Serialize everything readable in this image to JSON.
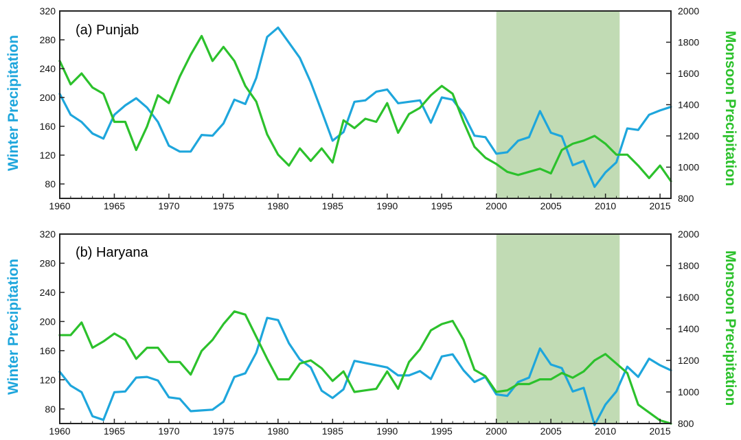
{
  "colors": {
    "winter": "#1ea6dc",
    "monsoon": "#2cc12c",
    "shade": "#c1dbb4",
    "frame": "#222222"
  },
  "chart_data": [
    {
      "type": "line",
      "title": "(a)   Punjab",
      "ylabel": "Winter Precipitation",
      "y2label": "Monsoon Precipitation",
      "xlim": [
        1960,
        2016
      ],
      "ylim": [
        60,
        320
      ],
      "y2lim": [
        800,
        2000
      ],
      "x_ticks": [
        "1960",
        "1965",
        "1970",
        "1975",
        "1980",
        "1985",
        "1990",
        "1995",
        "2000",
        "2005",
        "2010",
        "2015"
      ],
      "y_ticks": [
        "80",
        "120",
        "160",
        "200",
        "240",
        "280",
        "320"
      ],
      "y2_ticks": [
        "800",
        "1000",
        "1200",
        "1400",
        "1600",
        "1800",
        "2000"
      ],
      "shaded_range": [
        2000,
        2011.3
      ],
      "grid": false,
      "x": [
        1960,
        1961,
        1962,
        1963,
        1964,
        1965,
        1966,
        1967,
        1968,
        1969,
        1970,
        1971,
        1972,
        1973,
        1974,
        1975,
        1976,
        1977,
        1978,
        1979,
        1980,
        1981,
        1982,
        1983,
        1984,
        1985,
        1986,
        1987,
        1988,
        1989,
        1990,
        1991,
        1992,
        1993,
        1994,
        1995,
        1996,
        1997,
        1998,
        1999,
        2000,
        2001,
        2002,
        2003,
        2004,
        2005,
        2006,
        2007,
        2008,
        2009,
        2010,
        2011,
        2012,
        2013,
        2014,
        2015,
        2016
      ],
      "series": [
        {
          "axis": "left",
          "values": [
            205,
            176,
            166,
            150,
            143,
            176,
            189,
            199,
            186,
            166,
            133,
            125,
            125,
            148,
            147,
            164,
            197,
            191,
            227,
            284,
            297,
            276,
            255,
            221,
            181,
            140,
            152,
            194,
            196,
            208,
            211,
            192,
            194,
            196,
            165,
            200,
            197,
            177,
            147,
            145,
            122,
            124,
            140,
            145,
            181,
            151,
            146,
            106,
            112,
            76,
            96,
            110,
            157,
            155,
            176,
            182,
            187
          ]
        },
        {
          "axis": "right",
          "values": [
            1680,
            1530,
            1600,
            1510,
            1470,
            1290,
            1290,
            1110,
            1260,
            1460,
            1410,
            1580,
            1720,
            1840,
            1680,
            1770,
            1680,
            1520,
            1420,
            1210,
            1080,
            1010,
            1120,
            1040,
            1120,
            1030,
            1300,
            1250,
            1310,
            1290,
            1410,
            1220,
            1340,
            1380,
            1460,
            1520,
            1470,
            1290,
            1130,
            1060,
            1020,
            970,
            950,
            970,
            990,
            960,
            1110,
            1150,
            1170,
            1200,
            1150,
            1080,
            1080,
            1010,
            930,
            1010,
            910
          ]
        }
      ]
    },
    {
      "type": "line",
      "title": "(b)   Haryana",
      "ylabel": "Winter Precipitation",
      "y2label": "Monsoon Precipitation",
      "xlim": [
        1960,
        2016
      ],
      "ylim": [
        60,
        320
      ],
      "y2lim": [
        800,
        2000
      ],
      "x_ticks": [
        "1960",
        "1965",
        "1970",
        "1975",
        "1980",
        "1985",
        "1990",
        "1995",
        "2000",
        "2005",
        "2010",
        "2015"
      ],
      "y_ticks": [
        "80",
        "120",
        "160",
        "200",
        "240",
        "280",
        "320"
      ],
      "y2_ticks": [
        "800",
        "1000",
        "1200",
        "1400",
        "1600",
        "1800",
        "2000"
      ],
      "shaded_range": [
        2000,
        2011.3
      ],
      "grid": false,
      "x": [
        1960,
        1961,
        1962,
        1963,
        1964,
        1965,
        1966,
        1967,
        1968,
        1969,
        1970,
        1971,
        1972,
        1973,
        1974,
        1975,
        1976,
        1977,
        1978,
        1979,
        1980,
        1981,
        1982,
        1983,
        1984,
        1985,
        1986,
        1987,
        1988,
        1989,
        1990,
        1991,
        1992,
        1993,
        1994,
        1995,
        1996,
        1997,
        1998,
        1999,
        2000,
        2001,
        2002,
        2003,
        2004,
        2005,
        2006,
        2007,
        2008,
        2009,
        2010,
        2011,
        2012,
        2013,
        2014,
        2015,
        2016
      ],
      "series": [
        {
          "axis": "left",
          "values": [
            131,
            112,
            103,
            70,
            65,
            103,
            104,
            123,
            124,
            119,
            96,
            94,
            77,
            78,
            79,
            90,
            124,
            129,
            157,
            205,
            202,
            170,
            148,
            137,
            105,
            95,
            107,
            146,
            143,
            140,
            137,
            126,
            126,
            132,
            121,
            152,
            155,
            133,
            117,
            124,
            100,
            98,
            117,
            123,
            163,
            141,
            136,
            104,
            109,
            58,
            86,
            104,
            138,
            124,
            149,
            140,
            133
          ]
        },
        {
          "axis": "right",
          "values": [
            1360,
            1360,
            1440,
            1280,
            1320,
            1370,
            1330,
            1210,
            1280,
            1280,
            1190,
            1190,
            1110,
            1260,
            1330,
            1430,
            1510,
            1490,
            1350,
            1210,
            1080,
            1080,
            1180,
            1200,
            1150,
            1070,
            1130,
            1000,
            1010,
            1020,
            1130,
            1020,
            1190,
            1270,
            1390,
            1430,
            1450,
            1330,
            1140,
            1100,
            1000,
            1010,
            1050,
            1050,
            1080,
            1080,
            1120,
            1090,
            1130,
            1200,
            1240,
            1180,
            1120,
            920,
            870,
            820,
            800
          ]
        }
      ]
    }
  ]
}
